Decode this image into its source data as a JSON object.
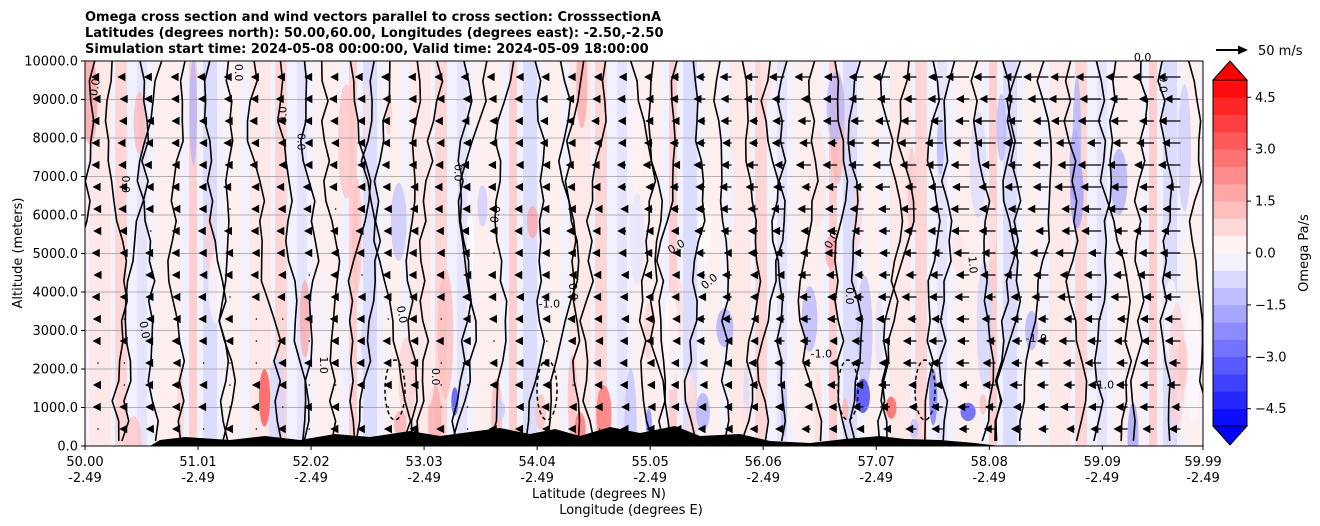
{
  "chart_data": {
    "type": "heatmap",
    "title_lines": [
      "Omega cross section and wind vectors parallel to cross section: CrosssectionA",
      "Latitudes (degrees north): 50.00,60.00, Longitudes (degrees east): -2.50,-2.50",
      "Simulation start time: 2024-05-08 00:00:00, Valid time: 2024-05-09 18:00:00"
    ],
    "xlabel_lines": [
      "Latitude (degrees N)",
      "Longitude (degrees E)"
    ],
    "ylabel": "Altitude (meters)",
    "x_ticks": [
      {
        "lat": "50.00",
        "lon": "-2.49",
        "v": 50.0
      },
      {
        "lat": "51.01",
        "lon": "-2.49",
        "v": 51.01
      },
      {
        "lat": "52.02",
        "lon": "-2.49",
        "v": 52.02
      },
      {
        "lat": "53.03",
        "lon": "-2.49",
        "v": 53.03
      },
      {
        "lat": "54.04",
        "lon": "-2.49",
        "v": 54.04
      },
      {
        "lat": "55.05",
        "lon": "-2.49",
        "v": 55.05
      },
      {
        "lat": "56.06",
        "lon": "-2.49",
        "v": 56.06
      },
      {
        "lat": "57.07",
        "lon": "-2.49",
        "v": 57.07
      },
      {
        "lat": "58.08",
        "lon": "-2.49",
        "v": 58.08
      },
      {
        "lat": "59.09",
        "lon": "-2.49",
        "v": 59.09
      },
      {
        "lat": "59.99",
        "lon": "-2.49",
        "v": 59.99
      }
    ],
    "xlim": [
      50.0,
      59.99
    ],
    "y_ticks": [
      "0.0",
      "1000.0",
      "2000.0",
      "3000.0",
      "4000.0",
      "5000.0",
      "6000.0",
      "7000.0",
      "8000.0",
      "9000.0",
      "10000.0"
    ],
    "ylim": [
      0,
      10000
    ],
    "grid": "horizontal",
    "colorbar": {
      "label": "Omega Pa/s",
      "tick_labels": [
        "4.5",
        "3.0",
        "1.5",
        "0.0",
        "−1.5",
        "−3.0",
        "−4.5"
      ],
      "tick_values": [
        4.5,
        3.0,
        1.5,
        0.0,
        -1.5,
        -3.0,
        -4.5
      ],
      "range": [
        -5.0,
        5.0
      ],
      "extend": "both",
      "colormap": "bwr"
    },
    "quiver_key": {
      "label": "50 m/s",
      "speed": 50
    },
    "contour_levels_labeled": [
      "0.0",
      "1.0",
      "-1.0"
    ],
    "contour_label_samples": [
      {
        "text": "0.0",
        "lat": 50.12,
        "alt": 9300,
        "rot": -80
      },
      {
        "text": "0.0",
        "lat": 50.33,
        "alt": 6800,
        "rot": 90
      },
      {
        "text": "0.0",
        "lat": 51.34,
        "alt": 9700,
        "rot": 90
      },
      {
        "text": "0.0",
        "lat": 51.8,
        "alt": 8600,
        "rot": -90
      },
      {
        "text": "0.0",
        "lat": 51.9,
        "alt": 7900,
        "rot": 90
      },
      {
        "text": "0.0",
        "lat": 50.5,
        "alt": 3000,
        "rot": 80
      },
      {
        "text": "1.0",
        "lat": 52.1,
        "alt": 2100,
        "rot": 90
      },
      {
        "text": "0.0",
        "lat": 52.8,
        "alt": 3400,
        "rot": 80
      },
      {
        "text": "0.0",
        "lat": 53.3,
        "alt": 7100,
        "rot": 90
      },
      {
        "text": "0.0",
        "lat": 53.7,
        "alt": 6000,
        "rot": -80
      },
      {
        "text": "0.0",
        "lat": 53.1,
        "alt": 1800,
        "rot": 90
      },
      {
        "text": "-1.0",
        "lat": 54.15,
        "alt": 3600,
        "rot": 0
      },
      {
        "text": "0.0",
        "lat": 54.33,
        "alt": 4000,
        "rot": 85
      },
      {
        "text": "0.0",
        "lat": 55.3,
        "alt": 5100,
        "rot": -30
      },
      {
        "text": "0.0",
        "lat": 55.6,
        "alt": 4200,
        "rot": -40
      },
      {
        "text": "0.0",
        "lat": 56.7,
        "alt": 5300,
        "rot": -60
      },
      {
        "text": "0.0",
        "lat": 56.8,
        "alt": 3900,
        "rot": 90
      },
      {
        "text": "-1.0",
        "lat": 56.58,
        "alt": 2300,
        "rot": 0
      },
      {
        "text": "1.0",
        "lat": 57.9,
        "alt": 4700,
        "rot": 85
      },
      {
        "text": "-1.0",
        "lat": 58.5,
        "alt": 2700,
        "rot": 0
      },
      {
        "text": "-1.0",
        "lat": 59.1,
        "alt": 1500,
        "rot": 0
      },
      {
        "text": "0.0",
        "lat": 59.6,
        "alt": 9400,
        "rot": 90
      },
      {
        "text": "0.0",
        "lat": 59.45,
        "alt": 10000,
        "rot": 0
      }
    ]
  }
}
